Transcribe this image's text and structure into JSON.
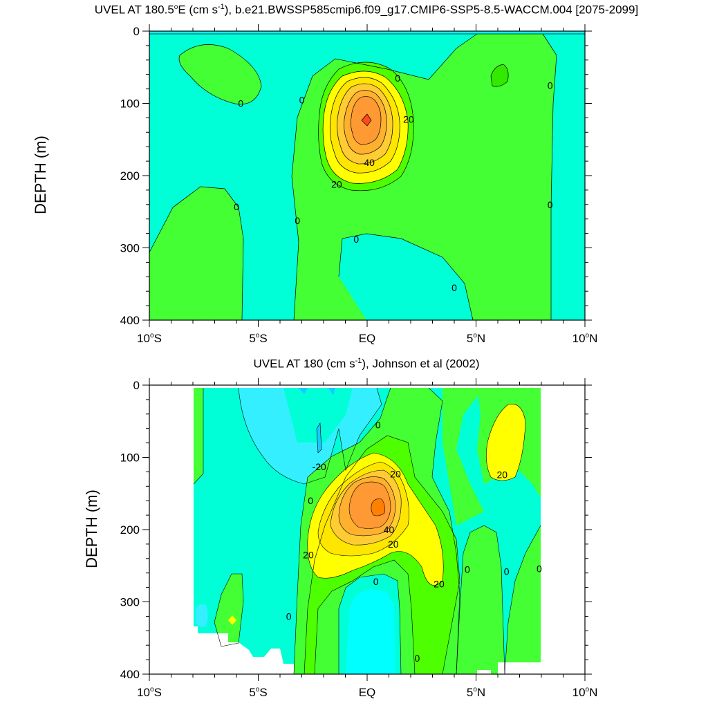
{
  "chart_data": [
    {
      "type": "contour",
      "title": "UVEL AT 180.5°E (cm s⁻¹), b.e21.BWSSP585cmip6.f09_g17.CMIP6-SSP5-8.5-WACCM.004 [2075-2099]",
      "title_parts": {
        "pre": "UVEL AT 180.5",
        "deg": "o",
        "mid": "E (cm s",
        "sup": "-1",
        "post": "), b.e21.BWSSP585cmip6.f09_g17.CMIP6-SSP5-8.5-WACCM.004 [2075-2099]"
      },
      "ylabel": "DEPTH (m)",
      "xlim": [
        -10,
        10
      ],
      "ylim": [
        400,
        0
      ],
      "x_ticks": [
        {
          "v": -10,
          "num": "10",
          "hemi": "S"
        },
        {
          "v": -5,
          "num": "5",
          "hemi": "S"
        },
        {
          "v": 0,
          "num": "EQ",
          "hemi": ""
        },
        {
          "v": 5,
          "num": "5",
          "hemi": "N"
        },
        {
          "v": 10,
          "num": "10",
          "hemi": "N"
        }
      ],
      "y_ticks": [
        {
          "v": 0,
          "label": "0"
        },
        {
          "v": 100,
          "label": "100"
        },
        {
          "v": 200,
          "label": "200"
        },
        {
          "v": 300,
          "label": "300"
        },
        {
          "v": 400,
          "label": "400"
        }
      ],
      "contour_labels": [
        {
          "lat": -5.8,
          "depth": 100,
          "label": "0"
        },
        {
          "lat": -3.0,
          "depth": 95,
          "label": "0"
        },
        {
          "lat": 1.4,
          "depth": 65,
          "label": "0"
        },
        {
          "lat": 8.4,
          "depth": 75,
          "label": "0"
        },
        {
          "lat": 1.9,
          "depth": 122,
          "label": "20"
        },
        {
          "lat": 0.1,
          "depth": 182,
          "label": "40"
        },
        {
          "lat": -1.4,
          "depth": 212,
          "label": "20"
        },
        {
          "lat": -6.0,
          "depth": 243,
          "label": "0"
        },
        {
          "lat": -3.2,
          "depth": 262,
          "label": "0"
        },
        {
          "lat": 8.4,
          "depth": 240,
          "label": "0"
        },
        {
          "lat": -0.5,
          "depth": 288,
          "label": "0"
        },
        {
          "lat": 4.0,
          "depth": 355,
          "label": "0"
        }
      ]
    },
    {
      "type": "contour",
      "title": "UVEL AT 180 (cm s⁻¹), Johnson et al (2002)",
      "title_parts": {
        "pre": "UVEL AT 180",
        "deg": "",
        "mid": " (cm s",
        "sup": "-1",
        "post": "), Johnson et al (2002)"
      },
      "ylabel": "DEPTH (m)",
      "xlim": [
        -10,
        10
      ],
      "ylim": [
        400,
        0
      ],
      "x_ticks": [
        {
          "v": -10,
          "num": "10",
          "hemi": "S"
        },
        {
          "v": -5,
          "num": "5",
          "hemi": "S"
        },
        {
          "v": 0,
          "num": "EQ",
          "hemi": ""
        },
        {
          "v": 5,
          "num": "5",
          "hemi": "N"
        },
        {
          "v": 10,
          "num": "10",
          "hemi": "N"
        }
      ],
      "y_ticks": [
        {
          "v": 0,
          "label": "0"
        },
        {
          "v": 100,
          "label": "100"
        },
        {
          "v": 200,
          "label": "200"
        },
        {
          "v": 300,
          "label": "300"
        },
        {
          "v": 400,
          "label": "400"
        }
      ],
      "contour_labels": [
        {
          "lat": 0.5,
          "depth": 55,
          "label": "0"
        },
        {
          "lat": -2.2,
          "depth": 113,
          "label": "-20"
        },
        {
          "lat": 1.3,
          "depth": 123,
          "label": "20"
        },
        {
          "lat": 6.2,
          "depth": 124,
          "label": "20"
        },
        {
          "lat": -2.6,
          "depth": 160,
          "label": "0"
        },
        {
          "lat": 1.0,
          "depth": 200,
          "label": "40"
        },
        {
          "lat": 1.2,
          "depth": 220,
          "label": "20"
        },
        {
          "lat": -2.7,
          "depth": 235,
          "label": "20"
        },
        {
          "lat": 4.6,
          "depth": 255,
          "label": "0"
        },
        {
          "lat": 6.4,
          "depth": 258,
          "label": "0"
        },
        {
          "lat": 7.9,
          "depth": 254,
          "label": "0"
        },
        {
          "lat": 3.3,
          "depth": 275,
          "label": "20"
        },
        {
          "lat": 0.4,
          "depth": 272,
          "label": "0"
        },
        {
          "lat": -3.6,
          "depth": 320,
          "label": "0"
        },
        {
          "lat": 2.3,
          "depth": 378,
          "label": "0"
        }
      ]
    }
  ]
}
